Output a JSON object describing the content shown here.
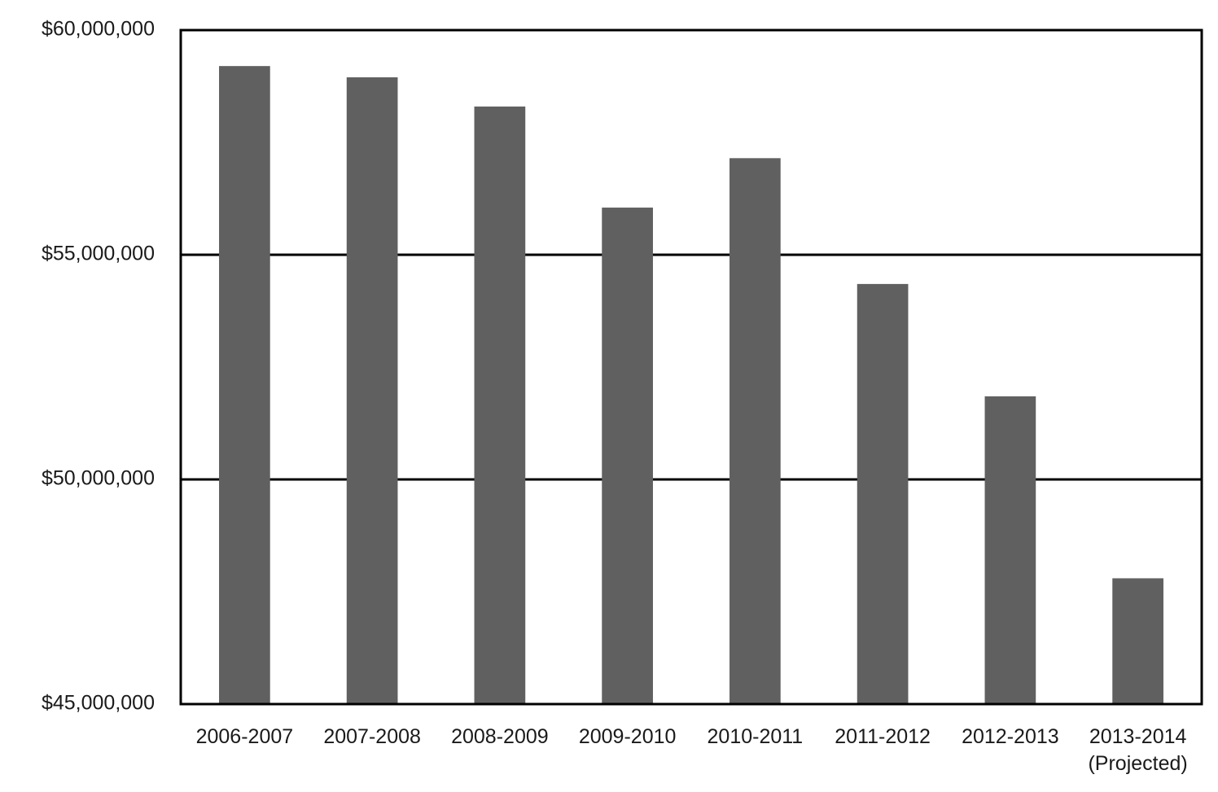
{
  "chart_data": {
    "type": "bar",
    "title": "",
    "xlabel": "",
    "ylabel": "",
    "categories": [
      [
        "2006-2007"
      ],
      [
        "2007-2008"
      ],
      [
        "2008-2009"
      ],
      [
        "2009-2010"
      ],
      [
        "2010-2011"
      ],
      [
        "2011-2012"
      ],
      [
        "2012-2013"
      ],
      [
        "2013-2014",
        "(Projected)"
      ]
    ],
    "values": [
      59200000,
      58950000,
      58300000,
      56050000,
      57150000,
      54350000,
      51850000,
      47800000
    ],
    "ylim": [
      45000000,
      60000000
    ],
    "yticks": [
      {
        "value": 45000000,
        "label": "$45,000,000"
      },
      {
        "value": 50000000,
        "label": "$50,000,000"
      },
      {
        "value": 55000000,
        "label": "$55,000,000"
      },
      {
        "value": 60000000,
        "label": "$60,000,000"
      }
    ],
    "grid": "horizontal",
    "bar_color": "#606060",
    "axis_color": "#000000"
  }
}
